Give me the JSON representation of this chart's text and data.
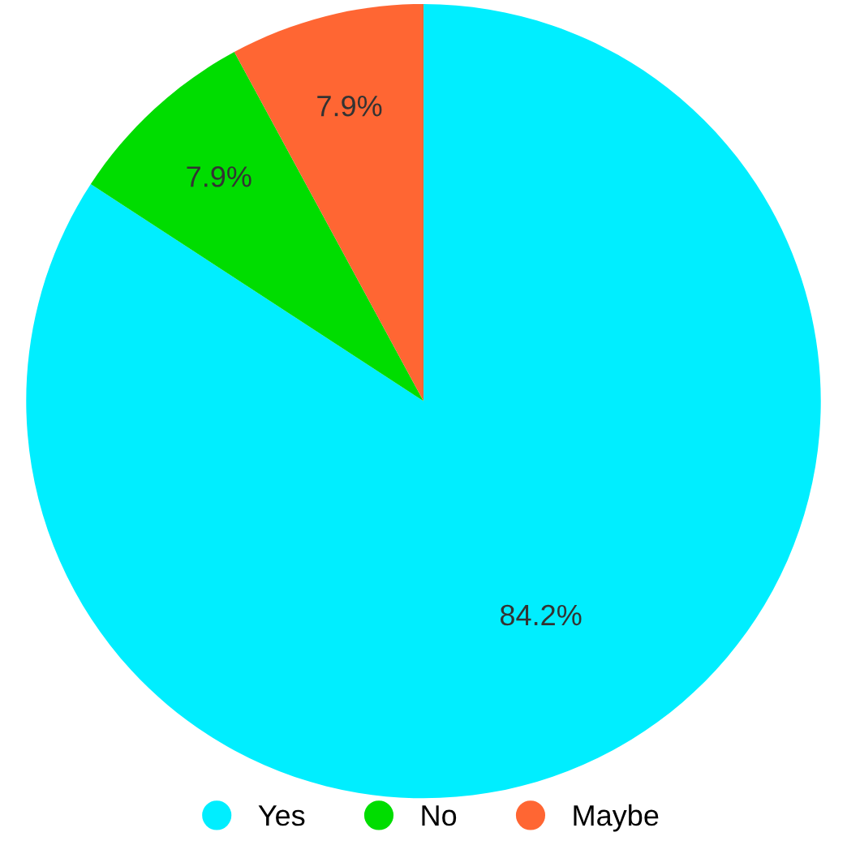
{
  "chart_data": {
    "type": "pie",
    "categories": [
      "Yes",
      "No",
      "Maybe"
    ],
    "values": [
      84.2,
      7.9,
      7.9
    ],
    "colors": [
      "#00eeff",
      "#00dd00",
      "#ff6633"
    ],
    "value_labels": [
      "84.2%",
      "7.9%",
      "7.9%"
    ],
    "legend": "bottom"
  }
}
